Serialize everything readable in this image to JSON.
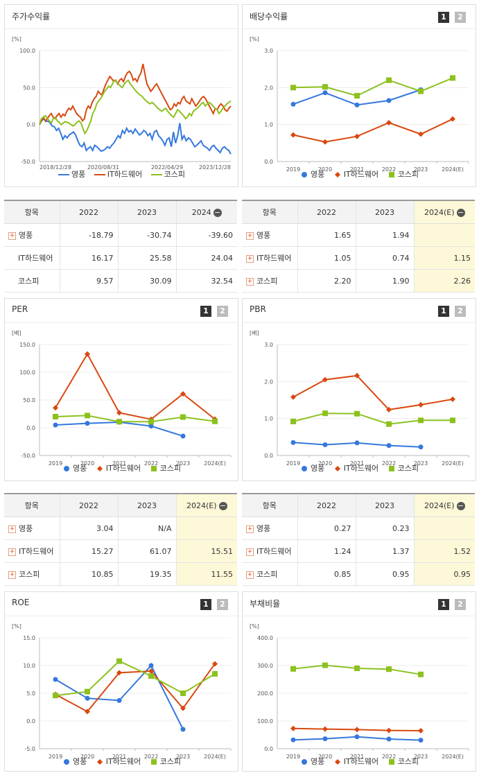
{
  "colors": {
    "youngpoong": "#3477dd",
    "it_hw": "#d9480f",
    "kospi": "#8cc11e",
    "grid": "#ececec",
    "axis": "#bbb",
    "est_bg": "#fdf8d8"
  },
  "legend": {
    "a": "영풍",
    "b": "IT하드웨어",
    "c": "코스피"
  },
  "tabs": {
    "one": "1",
    "two": "2"
  },
  "stock": {
    "title": "주가수익률",
    "unit": "[%]",
    "table": {
      "header": [
        "항목",
        "2022",
        "2023",
        "2024"
      ],
      "rows": [
        {
          "name": "영풍",
          "values": [
            "-18.79",
            "-30.74",
            "-39.60"
          ],
          "plus": true
        },
        {
          "name": "IT하드웨어",
          "values": [
            "16.17",
            "25.58",
            "24.04"
          ],
          "plus": false
        },
        {
          "name": "코스피",
          "values": [
            "9.57",
            "30.09",
            "32.54"
          ],
          "plus": false
        }
      ]
    }
  },
  "dividend": {
    "title": "배당수익률",
    "unit": "[%]",
    "table": {
      "header": [
        "항목",
        "2022",
        "2023",
        "2024(E)"
      ],
      "rows": [
        {
          "name": "영풍",
          "values": [
            "1.65",
            "1.94",
            ""
          ],
          "plus": true
        },
        {
          "name": "IT하드웨어",
          "values": [
            "1.05",
            "0.74",
            "1.15"
          ],
          "plus": true
        },
        {
          "name": "코스피",
          "values": [
            "2.20",
            "1.90",
            "2.26"
          ],
          "plus": true
        }
      ]
    }
  },
  "per": {
    "title": "PER",
    "unit": "[배]",
    "table": {
      "header": [
        "항목",
        "2022",
        "2023",
        "2024(E)"
      ],
      "rows": [
        {
          "name": "영풍",
          "values": [
            "3.04",
            "N/A",
            ""
          ],
          "plus": true
        },
        {
          "name": "IT하드웨어",
          "values": [
            "15.27",
            "61.07",
            "15.51"
          ],
          "plus": true
        },
        {
          "name": "코스피",
          "values": [
            "10.85",
            "19.35",
            "11.55"
          ],
          "plus": true
        }
      ]
    }
  },
  "pbr": {
    "title": "PBR",
    "unit": "[배]",
    "table": {
      "header": [
        "항목",
        "2022",
        "2023",
        "2024(E)"
      ],
      "rows": [
        {
          "name": "영풍",
          "values": [
            "0.27",
            "0.23",
            ""
          ],
          "plus": true
        },
        {
          "name": "IT하드웨어",
          "values": [
            "1.24",
            "1.37",
            "1.52"
          ],
          "plus": true
        },
        {
          "name": "코스피",
          "values": [
            "0.85",
            "0.95",
            "0.95"
          ],
          "plus": true
        }
      ]
    }
  },
  "roe": {
    "title": "ROE",
    "unit": "[%]"
  },
  "debt": {
    "title": "부채비율",
    "unit": "[%]"
  },
  "chart_data": [
    {
      "id": "stock",
      "type": "line",
      "ylim": [
        -50,
        100
      ],
      "yticks": [
        "100.0",
        "50.0",
        "0.0",
        "-50.0"
      ],
      "xticks": [
        "2018/12/28",
        "2020/08/31",
        "2022/04/29",
        "2023/12/28"
      ],
      "series": [
        {
          "name": "영풍",
          "values": [
            0,
            5,
            8,
            4,
            5,
            2,
            -2,
            -3,
            -8,
            -5,
            -12,
            -20,
            -15,
            -18,
            -14,
            -12,
            -10,
            -14,
            -22,
            -28,
            -30,
            -25,
            -35,
            -32,
            -30,
            -35,
            -28,
            -30,
            -33,
            -36,
            -35,
            -33,
            -30,
            -32,
            -28,
            -25,
            -20,
            -15,
            -18,
            -8,
            -12,
            -5,
            -10,
            -8,
            -12,
            -6,
            -10,
            -14,
            -12,
            -8,
            -10,
            -15,
            -12,
            -20,
            -10,
            -8,
            -15,
            -18,
            -22,
            -28,
            -20,
            -18,
            -30,
            -10,
            -25,
            -15,
            2,
            -20,
            -15,
            -22,
            -18,
            -20,
            -25,
            -30,
            -28,
            -25,
            -22,
            -28,
            -30,
            -32,
            -35,
            -30,
            -28,
            -32,
            -35,
            -38,
            -32,
            -30,
            -33,
            -35,
            -40
          ]
        },
        {
          "name": "IT하드웨어",
          "values": [
            0,
            5,
            10,
            5,
            8,
            12,
            15,
            10,
            8,
            12,
            15,
            10,
            14,
            12,
            18,
            22,
            20,
            25,
            20,
            15,
            12,
            10,
            5,
            8,
            20,
            25,
            22,
            30,
            35,
            38,
            45,
            42,
            40,
            48,
            55,
            60,
            65,
            62,
            58,
            60,
            55,
            60,
            62,
            58,
            65,
            70,
            72,
            68,
            60,
            62,
            58,
            65,
            70,
            82,
            68,
            55,
            50,
            45,
            48,
            52,
            55,
            50,
            45,
            40,
            35,
            30,
            25,
            20,
            22,
            28,
            25,
            30,
            28,
            35,
            38,
            32,
            30,
            28,
            35,
            30,
            25,
            28,
            32,
            36,
            38,
            35,
            30,
            25,
            20,
            15,
            22,
            20,
            25,
            28,
            25,
            20,
            18,
            22,
            25
          ]
        },
        {
          "name": "코스피",
          "values": [
            0,
            8,
            10,
            12,
            8,
            5,
            2,
            8,
            10,
            5,
            3,
            0,
            2,
            4,
            3,
            2,
            0,
            -2,
            0,
            3,
            5,
            2,
            -5,
            -12,
            -8,
            -2,
            5,
            15,
            20,
            28,
            32,
            35,
            40,
            45,
            48,
            52,
            50,
            55,
            60,
            58,
            55,
            52,
            50,
            55,
            58,
            60,
            55,
            52,
            48,
            45,
            42,
            40,
            38,
            35,
            32,
            30,
            28,
            30,
            28,
            25,
            22,
            20,
            18,
            20,
            22,
            18,
            15,
            12,
            10,
            15,
            20,
            18,
            15,
            12,
            8,
            10,
            15,
            12,
            18,
            20,
            22,
            25,
            28,
            30,
            25,
            28,
            30,
            28,
            25,
            22,
            20,
            15,
            18,
            22,
            25,
            28,
            30,
            32
          ]
        }
      ]
    },
    {
      "id": "dividend",
      "type": "line",
      "ylim": [
        0,
        3
      ],
      "yticks": [
        "3.0",
        "2.0",
        "1.0",
        "0.0"
      ],
      "categories": [
        "2019",
        "2020",
        "2021",
        "2022",
        "2023",
        "2024(E)"
      ],
      "series": [
        {
          "name": "영풍",
          "values": [
            1.55,
            1.86,
            1.53,
            1.65,
            1.94,
            null
          ]
        },
        {
          "name": "IT하드웨어",
          "values": [
            0.72,
            0.53,
            0.68,
            1.05,
            0.74,
            1.15
          ]
        },
        {
          "name": "코스피",
          "values": [
            2.0,
            2.02,
            1.78,
            2.2,
            1.9,
            2.26
          ]
        }
      ]
    },
    {
      "id": "per",
      "type": "line",
      "ylim": [
        -50,
        150
      ],
      "yticks": [
        "150.0",
        "100.0",
        "50.0",
        "0.0",
        "-50.0"
      ],
      "categories": [
        "2019",
        "2020",
        "2021",
        "2022",
        "2023",
        "2024(E)"
      ],
      "series": [
        {
          "name": "영풍",
          "values": [
            5,
            8,
            10,
            3.04,
            -15,
            null
          ]
        },
        {
          "name": "IT하드웨어",
          "values": [
            36,
            133,
            27,
            15.27,
            61.07,
            15.51
          ]
        },
        {
          "name": "코스피",
          "values": [
            20,
            22,
            11,
            10.85,
            19.35,
            11.55
          ]
        }
      ]
    },
    {
      "id": "pbr",
      "type": "line",
      "ylim": [
        0,
        3
      ],
      "yticks": [
        "3.0",
        "2.0",
        "1.0",
        "0.0"
      ],
      "categories": [
        "2019",
        "2020",
        "2021",
        "2022",
        "2023",
        "2024(E)"
      ],
      "series": [
        {
          "name": "영풍",
          "values": [
            0.35,
            0.29,
            0.34,
            0.27,
            0.23,
            null
          ]
        },
        {
          "name": "IT하드웨어",
          "values": [
            1.58,
            2.05,
            2.16,
            1.24,
            1.37,
            1.52
          ]
        },
        {
          "name": "코스피",
          "values": [
            0.92,
            1.14,
            1.13,
            0.85,
            0.95,
            0.95
          ]
        }
      ]
    },
    {
      "id": "roe",
      "type": "line",
      "ylim": [
        -5,
        15
      ],
      "yticks": [
        "15.0",
        "10.0",
        "5.0",
        "0.0",
        "-5.0"
      ],
      "categories": [
        "2019",
        "2020",
        "2021",
        "2022",
        "2023",
        "2024(E)"
      ],
      "series": [
        {
          "name": "영풍",
          "values": [
            7.5,
            4.1,
            3.7,
            10.0,
            -1.5,
            null
          ]
        },
        {
          "name": "IT하드웨어",
          "values": [
            4.8,
            1.7,
            8.7,
            9.0,
            2.3,
            10.3
          ]
        },
        {
          "name": "코스피",
          "values": [
            4.6,
            5.3,
            10.8,
            8.1,
            5.0,
            8.5
          ]
        }
      ]
    },
    {
      "id": "debt",
      "type": "line",
      "ylim": [
        0,
        400
      ],
      "yticks": [
        "400.0",
        "300.0",
        "200.0",
        "100.0",
        "0.0"
      ],
      "categories": [
        "2019",
        "2020",
        "2021",
        "2022",
        "2023",
        "2024(E)"
      ],
      "series": [
        {
          "name": "영풍",
          "values": [
            32,
            36,
            43,
            35,
            31,
            null
          ]
        },
        {
          "name": "IT하드웨어",
          "values": [
            73,
            71,
            69,
            66,
            65,
            null
          ]
        },
        {
          "name": "코스피",
          "values": [
            288,
            301,
            290,
            287,
            268,
            null
          ]
        }
      ]
    }
  ]
}
